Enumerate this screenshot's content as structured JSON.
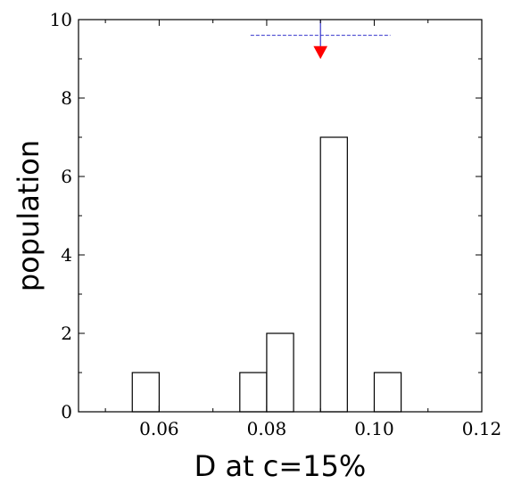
{
  "chart_data": {
    "type": "bar",
    "title": "",
    "xlabel": "D at c=15%",
    "ylabel": "population",
    "xlim": [
      0.045,
      0.12
    ],
    "ylim": [
      0,
      10
    ],
    "x_ticks": [
      0.06,
      0.08,
      0.1,
      0.12
    ],
    "x_tick_labels": [
      "0.06",
      "0.08",
      "0.10",
      "0.12"
    ],
    "y_ticks": [
      0,
      2,
      4,
      6,
      8,
      10
    ],
    "y_tick_labels": [
      "0",
      "2",
      "4",
      "6",
      "8",
      "10"
    ],
    "grid": false,
    "legend": "none",
    "bin_width": 0.005,
    "bins": [
      {
        "x0": 0.055,
        "x1": 0.06,
        "count": 1
      },
      {
        "x0": 0.075,
        "x1": 0.08,
        "count": 1
      },
      {
        "x0": 0.08,
        "x1": 0.085,
        "count": 2
      },
      {
        "x0": 0.09,
        "x1": 0.095,
        "count": 7
      },
      {
        "x0": 0.1,
        "x1": 0.105,
        "count": 1
      }
    ],
    "annotation": {
      "marker_x": 0.09,
      "marker_tip_y": 9.2,
      "range_x": [
        0.077,
        0.103
      ],
      "range_y": 9.6,
      "arrow_color": "#ff0000",
      "line_color": "#3333cc"
    }
  }
}
